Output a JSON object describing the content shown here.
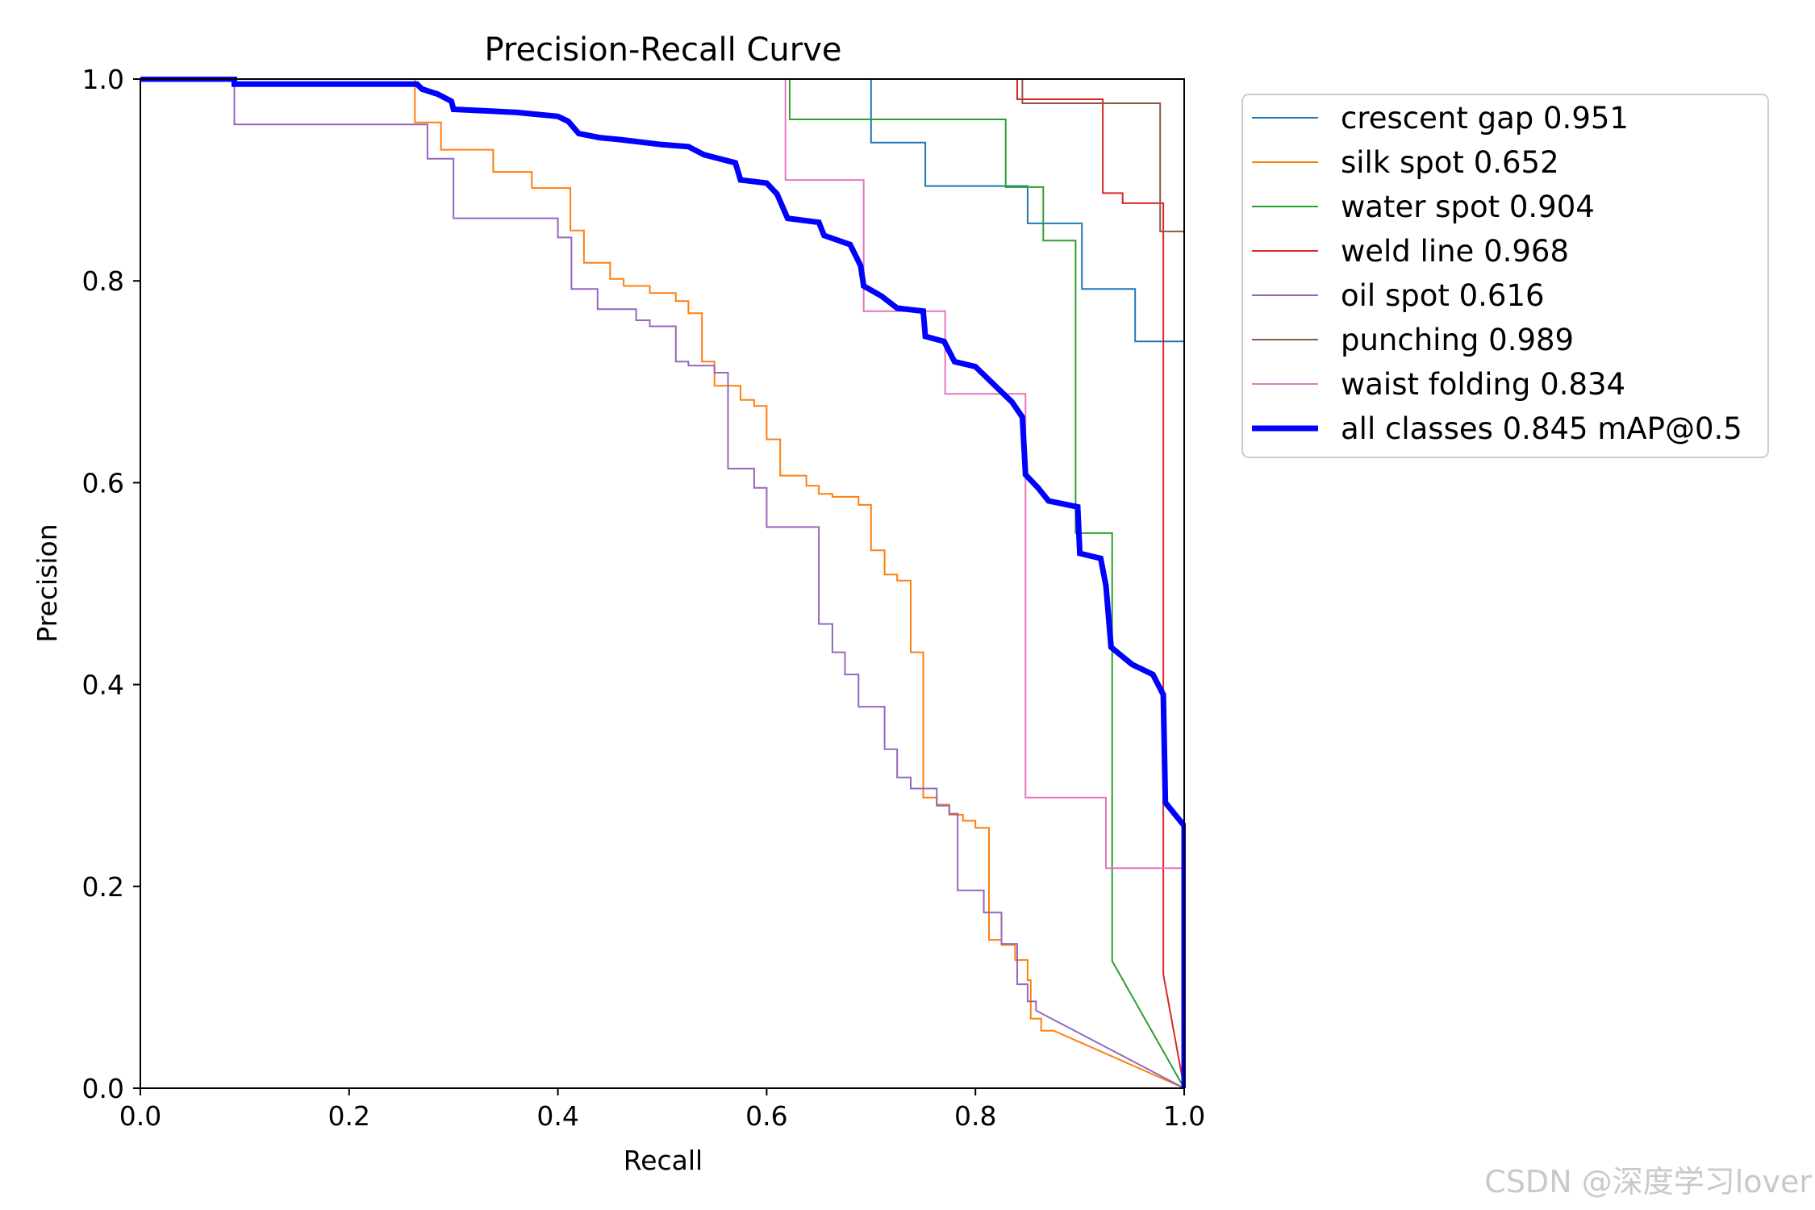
{
  "chart_data": {
    "type": "line",
    "title": "Precision-Recall Curve",
    "xlabel": "Recall",
    "ylabel": "Precision",
    "xlim": [
      0.0,
      1.0
    ],
    "ylim": [
      0.0,
      1.0
    ],
    "xticks": [
      "0.0",
      "0.2",
      "0.4",
      "0.6",
      "0.8",
      "1.0"
    ],
    "yticks": [
      "0.0",
      "0.2",
      "0.4",
      "0.6",
      "0.8",
      "1.0"
    ],
    "legend_position": "outside-top-right",
    "series": [
      {
        "name": "crescent gap 0.951",
        "color": "#1f77b4",
        "width": 2,
        "points": [
          [
            0,
            1
          ],
          [
            0.7,
            1
          ],
          [
            0.7,
            0.937
          ],
          [
            0.752,
            0.937
          ],
          [
            0.752,
            0.894
          ],
          [
            0.85,
            0.894
          ],
          [
            0.85,
            0.857
          ],
          [
            0.902,
            0.857
          ],
          [
            0.902,
            0.792
          ],
          [
            0.953,
            0.792
          ],
          [
            0.953,
            0.74
          ],
          [
            1.0,
            0.74
          ],
          [
            1.0,
            0
          ]
        ]
      },
      {
        "name": "silk spot 0.652",
        "color": "#ff7f0e",
        "width": 2,
        "points": [
          [
            0,
            1
          ],
          [
            0.263,
            1
          ],
          [
            0.263,
            0.957
          ],
          [
            0.288,
            0.957
          ],
          [
            0.288,
            0.93
          ],
          [
            0.338,
            0.93
          ],
          [
            0.338,
            0.908
          ],
          [
            0.375,
            0.908
          ],
          [
            0.375,
            0.892
          ],
          [
            0.412,
            0.892
          ],
          [
            0.412,
            0.85
          ],
          [
            0.425,
            0.85
          ],
          [
            0.425,
            0.818
          ],
          [
            0.45,
            0.818
          ],
          [
            0.45,
            0.802
          ],
          [
            0.463,
            0.802
          ],
          [
            0.463,
            0.795
          ],
          [
            0.488,
            0.795
          ],
          [
            0.488,
            0.788
          ],
          [
            0.513,
            0.788
          ],
          [
            0.513,
            0.78
          ],
          [
            0.525,
            0.78
          ],
          [
            0.525,
            0.768
          ],
          [
            0.538,
            0.768
          ],
          [
            0.538,
            0.72
          ],
          [
            0.55,
            0.72
          ],
          [
            0.55,
            0.696
          ],
          [
            0.575,
            0.696
          ],
          [
            0.575,
            0.682
          ],
          [
            0.588,
            0.682
          ],
          [
            0.588,
            0.676
          ],
          [
            0.6,
            0.676
          ],
          [
            0.6,
            0.643
          ],
          [
            0.613,
            0.643
          ],
          [
            0.613,
            0.607
          ],
          [
            0.638,
            0.607
          ],
          [
            0.638,
            0.597
          ],
          [
            0.65,
            0.597
          ],
          [
            0.65,
            0.589
          ],
          [
            0.663,
            0.589
          ],
          [
            0.663,
            0.586
          ],
          [
            0.688,
            0.586
          ],
          [
            0.688,
            0.578
          ],
          [
            0.7,
            0.578
          ],
          [
            0.7,
            0.533
          ],
          [
            0.713,
            0.533
          ],
          [
            0.713,
            0.509
          ],
          [
            0.725,
            0.509
          ],
          [
            0.725,
            0.503
          ],
          [
            0.738,
            0.503
          ],
          [
            0.738,
            0.432
          ],
          [
            0.75,
            0.432
          ],
          [
            0.75,
            0.288
          ],
          [
            0.763,
            0.288
          ],
          [
            0.763,
            0.281
          ],
          [
            0.775,
            0.281
          ],
          [
            0.775,
            0.271
          ],
          [
            0.788,
            0.271
          ],
          [
            0.788,
            0.265
          ],
          [
            0.8,
            0.265
          ],
          [
            0.8,
            0.258
          ],
          [
            0.813,
            0.258
          ],
          [
            0.813,
            0.147
          ],
          [
            0.825,
            0.147
          ],
          [
            0.825,
            0.142
          ],
          [
            0.838,
            0.142
          ],
          [
            0.838,
            0.127
          ],
          [
            0.85,
            0.127
          ],
          [
            0.85,
            0.107
          ],
          [
            0.853,
            0.107
          ],
          [
            0.853,
            0.069
          ],
          [
            0.863,
            0.069
          ],
          [
            0.863,
            0.057
          ],
          [
            0.875,
            0.057
          ],
          [
            1.0,
            0
          ]
        ]
      },
      {
        "name": "water spot 0.904",
        "color": "#2ca02c",
        "width": 2,
        "points": [
          [
            0,
            1
          ],
          [
            0.622,
            1
          ],
          [
            0.622,
            0.96
          ],
          [
            0.829,
            0.96
          ],
          [
            0.829,
            0.893
          ],
          [
            0.865,
            0.893
          ],
          [
            0.865,
            0.84
          ],
          [
            0.896,
            0.84
          ],
          [
            0.896,
            0.55
          ],
          [
            0.931,
            0.55
          ],
          [
            0.931,
            0.126
          ],
          [
            1.0,
            0
          ]
        ]
      },
      {
        "name": "weld line 0.968",
        "color": "#d62728",
        "width": 2,
        "points": [
          [
            0,
            1
          ],
          [
            0.84,
            1
          ],
          [
            0.84,
            0.98
          ],
          [
            0.922,
            0.98
          ],
          [
            0.922,
            0.887
          ],
          [
            0.941,
            0.887
          ],
          [
            0.941,
            0.877
          ],
          [
            0.98,
            0.877
          ],
          [
            0.98,
            0.113
          ],
          [
            1.0,
            0
          ]
        ]
      },
      {
        "name": "oil spot 0.616",
        "color": "#9467bd",
        "width": 2,
        "points": [
          [
            0,
            1
          ],
          [
            0.09,
            1
          ],
          [
            0.09,
            0.955
          ],
          [
            0.275,
            0.955
          ],
          [
            0.275,
            0.921
          ],
          [
            0.3,
            0.921
          ],
          [
            0.3,
            0.862
          ],
          [
            0.4,
            0.862
          ],
          [
            0.4,
            0.843
          ],
          [
            0.413,
            0.843
          ],
          [
            0.413,
            0.792
          ],
          [
            0.438,
            0.792
          ],
          [
            0.438,
            0.772
          ],
          [
            0.475,
            0.772
          ],
          [
            0.475,
            0.761
          ],
          [
            0.488,
            0.761
          ],
          [
            0.488,
            0.755
          ],
          [
            0.513,
            0.755
          ],
          [
            0.513,
            0.72
          ],
          [
            0.525,
            0.72
          ],
          [
            0.525,
            0.716
          ],
          [
            0.55,
            0.716
          ],
          [
            0.55,
            0.709
          ],
          [
            0.563,
            0.709
          ],
          [
            0.563,
            0.614
          ],
          [
            0.588,
            0.614
          ],
          [
            0.588,
            0.595
          ],
          [
            0.6,
            0.595
          ],
          [
            0.6,
            0.556
          ],
          [
            0.65,
            0.556
          ],
          [
            0.65,
            0.46
          ],
          [
            0.663,
            0.46
          ],
          [
            0.663,
            0.432
          ],
          [
            0.675,
            0.432
          ],
          [
            0.675,
            0.41
          ],
          [
            0.688,
            0.41
          ],
          [
            0.688,
            0.378
          ],
          [
            0.713,
            0.378
          ],
          [
            0.713,
            0.336
          ],
          [
            0.725,
            0.336
          ],
          [
            0.725,
            0.308
          ],
          [
            0.738,
            0.308
          ],
          [
            0.738,
            0.297
          ],
          [
            0.763,
            0.297
          ],
          [
            0.763,
            0.28
          ],
          [
            0.775,
            0.28
          ],
          [
            0.775,
            0.272
          ],
          [
            0.783,
            0.272
          ],
          [
            0.783,
            0.196
          ],
          [
            0.808,
            0.196
          ],
          [
            0.808,
            0.174
          ],
          [
            0.825,
            0.174
          ],
          [
            0.825,
            0.143
          ],
          [
            0.84,
            0.143
          ],
          [
            0.84,
            0.103
          ],
          [
            0.85,
            0.103
          ],
          [
            0.85,
            0.086
          ],
          [
            0.858,
            0.086
          ],
          [
            0.858,
            0.077
          ],
          [
            1.0,
            0
          ]
        ]
      },
      {
        "name": "punching 0.989",
        "color": "#8c564b",
        "width": 2,
        "points": [
          [
            0,
            1
          ],
          [
            0.845,
            1
          ],
          [
            0.845,
            0.976
          ],
          [
            0.977,
            0.976
          ],
          [
            0.977,
            0.849
          ],
          [
            1.0,
            0.849
          ],
          [
            1.0,
            0
          ]
        ]
      },
      {
        "name": "waist folding 0.834",
        "color": "#e377c2",
        "width": 2,
        "points": [
          [
            0,
            1
          ],
          [
            0.618,
            1
          ],
          [
            0.618,
            0.9
          ],
          [
            0.693,
            0.9
          ],
          [
            0.693,
            0.77
          ],
          [
            0.771,
            0.77
          ],
          [
            0.771,
            0.688
          ],
          [
            0.848,
            0.688
          ],
          [
            0.848,
            0.288
          ],
          [
            0.925,
            0.288
          ],
          [
            0.925,
            0.218
          ],
          [
            1.0,
            0.218
          ],
          [
            1.0,
            0
          ]
        ]
      },
      {
        "name": "all classes 0.845 mAP@0.5",
        "color": "#0000ff",
        "width": 7,
        "points": [
          [
            0,
            1
          ],
          [
            0.09,
            1
          ],
          [
            0.09,
            0.995
          ],
          [
            0.265,
            0.995
          ],
          [
            0.27,
            0.99
          ],
          [
            0.285,
            0.985
          ],
          [
            0.298,
            0.978
          ],
          [
            0.3,
            0.97
          ],
          [
            0.34,
            0.968
          ],
          [
            0.36,
            0.967
          ],
          [
            0.4,
            0.963
          ],
          [
            0.41,
            0.958
          ],
          [
            0.42,
            0.946
          ],
          [
            0.44,
            0.942
          ],
          [
            0.46,
            0.94
          ],
          [
            0.5,
            0.935
          ],
          [
            0.525,
            0.933
          ],
          [
            0.54,
            0.925
          ],
          [
            0.57,
            0.917
          ],
          [
            0.575,
            0.9
          ],
          [
            0.6,
            0.897
          ],
          [
            0.61,
            0.886
          ],
          [
            0.62,
            0.862
          ],
          [
            0.65,
            0.858
          ],
          [
            0.655,
            0.845
          ],
          [
            0.68,
            0.836
          ],
          [
            0.69,
            0.815
          ],
          [
            0.693,
            0.795
          ],
          [
            0.71,
            0.785
          ],
          [
            0.725,
            0.773
          ],
          [
            0.75,
            0.77
          ],
          [
            0.752,
            0.745
          ],
          [
            0.77,
            0.74
          ],
          [
            0.78,
            0.72
          ],
          [
            0.8,
            0.715
          ],
          [
            0.81,
            0.705
          ],
          [
            0.82,
            0.695
          ],
          [
            0.835,
            0.68
          ],
          [
            0.845,
            0.665
          ],
          [
            0.848,
            0.608
          ],
          [
            0.86,
            0.595
          ],
          [
            0.87,
            0.582
          ],
          [
            0.898,
            0.576
          ],
          [
            0.9,
            0.53
          ],
          [
            0.92,
            0.525
          ],
          [
            0.925,
            0.498
          ],
          [
            0.93,
            0.437
          ],
          [
            0.95,
            0.42
          ],
          [
            0.97,
            0.41
          ],
          [
            0.98,
            0.39
          ],
          [
            0.982,
            0.283
          ],
          [
            1.0,
            0.26
          ],
          [
            1.0,
            0
          ]
        ]
      }
    ]
  },
  "watermark": "CSDN @深度学习lover"
}
